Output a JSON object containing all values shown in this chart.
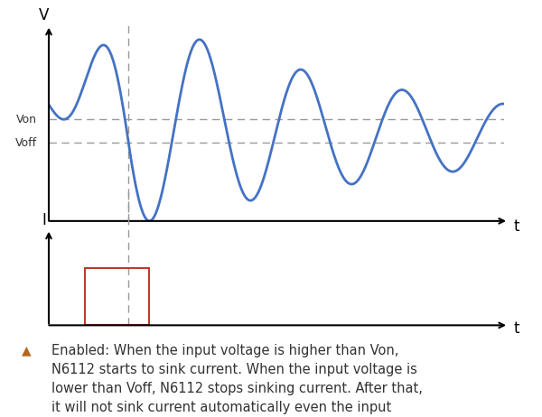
{
  "background_color": "#ffffff",
  "top_plot": {
    "ylabel": "V",
    "xlabel": "t",
    "von_label": "Von",
    "voff_label": "Voff",
    "line_color": "#4472C4",
    "dashed_color": "#999999"
  },
  "bottom_plot": {
    "ylabel": "I",
    "xlabel": "t",
    "rect_color": "#c0392b",
    "dashed_color": "#999999"
  },
  "annotation": {
    "triangle_color": "#b5651d",
    "text": "Enabled: When the input voltage is higher than Von,\nN6112 starts to sink current. When the input voltage is\nlower than Voff, N6112 stops sinking current. After that,\nit will not sink current automatically even the input\nvoltage is higher than Von again.",
    "fontsize": 10.5
  }
}
